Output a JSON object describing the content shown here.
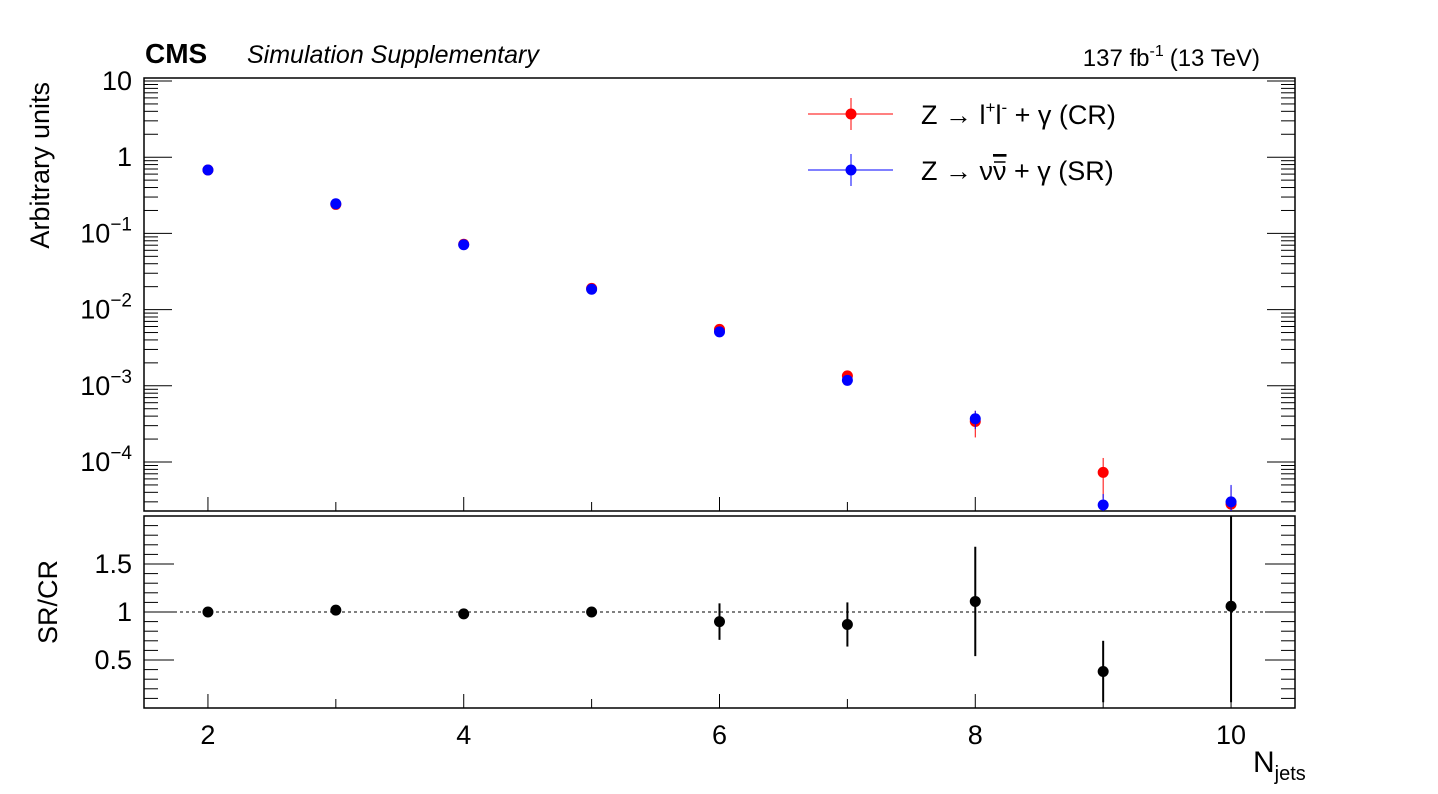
{
  "header": {
    "experiment": "CMS",
    "subtitle": "Simulation Supplementary",
    "lumi_value": "137 fb",
    "lumi_exponent": "-1",
    "energy": "(13 TeV)"
  },
  "chart_data": [
    {
      "type": "scatter",
      "panel": "main",
      "ylabel": "Arbitrary units",
      "yscale": "log",
      "ylim": [
        2e-05,
        10
      ],
      "xlim": [
        1.5,
        10.5
      ],
      "y_tick_labels": [
        {
          "v": 10,
          "base": "10",
          "exp": ""
        },
        {
          "v": 1,
          "base": "1",
          "exp": ""
        },
        {
          "v": 0.1,
          "base": "10",
          "exp": "−1"
        },
        {
          "v": 0.01,
          "base": "10",
          "exp": "−2"
        },
        {
          "v": 0.001,
          "base": "10",
          "exp": "−3"
        },
        {
          "v": 0.0001,
          "base": "10",
          "exp": "−4"
        }
      ],
      "legend_position": "top-right",
      "series": [
        {
          "name": "Z → l⁺l⁻ + γ (CR)",
          "legend_parts": {
            "lead": "Z → l",
            "sup1": "+",
            "mid": "l",
            "sup2": "-",
            "tail": " + γ (CR)"
          },
          "color": "#ff0000",
          "x": [
            2,
            3,
            4,
            5,
            6,
            7,
            8,
            9,
            10
          ],
          "y": [
            0.68,
            0.24,
            0.072,
            0.019,
            0.0055,
            0.00135,
            0.00034,
            7.3e-05,
            2.8e-05
          ],
          "err": [
            0.004,
            0.002,
            0.001,
            0.0003,
            0.0003,
            0.00012,
            0.00013,
            4e-05,
            2e-05
          ]
        },
        {
          "name": "Z → νν̄ + γ (SR)",
          "legend_parts": {
            "lead": "Z → ν",
            "nubar": "ν",
            "tail": " + γ (SR)"
          },
          "color": "#0000ff",
          "x": [
            2,
            3,
            4,
            5,
            6,
            7,
            8,
            9,
            10
          ],
          "y": [
            0.68,
            0.245,
            0.071,
            0.0185,
            0.0051,
            0.00118,
            0.00037,
            2.6e-05,
            3e-05
          ],
          "err": [
            0.003,
            0.002,
            0.0008,
            0.0002,
            0.0002,
            6e-05,
            0.0001,
            1.2e-05,
            2e-05
          ]
        }
      ]
    },
    {
      "type": "scatter",
      "panel": "ratio",
      "ylabel": "SR/CR",
      "xlabel_base": "N",
      "xlabel_sub": "jets",
      "ylim": [
        0,
        2
      ],
      "xlim": [
        1.5,
        10.5
      ],
      "x_tick_labels": [
        "2",
        "4",
        "6",
        "8",
        "10"
      ],
      "y_tick_labels": [
        "0.5",
        "1",
        "1.5"
      ],
      "reference_line": 1,
      "color": "#000000",
      "x": [
        2,
        3,
        4,
        5,
        6,
        7,
        8,
        9,
        10
      ],
      "y": [
        1.0,
        1.02,
        0.98,
        1.0,
        0.9,
        0.87,
        1.11,
        0.38,
        1.06
      ],
      "err": [
        0.01,
        0.01,
        0.01,
        0.01,
        0.19,
        0.23,
        0.57,
        0.32,
        1.0
      ]
    }
  ]
}
